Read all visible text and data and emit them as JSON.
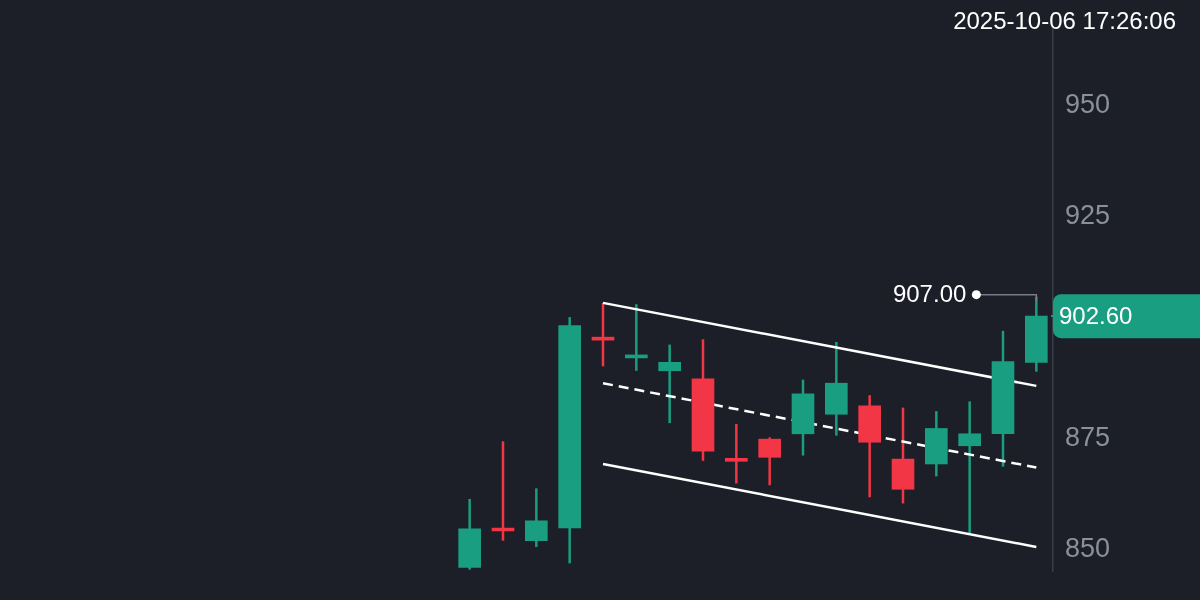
{
  "chart_data": {
    "type": "candlestick",
    "subtitle": "2025-10-06 17:26:06",
    "categories": [
      null,
      null,
      null,
      null,
      null,
      null,
      null,
      null,
      null,
      null,
      null,
      null,
      null,
      null,
      null,
      null,
      null,
      null
    ],
    "ohlc": [
      [
        846,
        861.4,
        845.5,
        854.7
      ],
      [
        854.8,
        874.4,
        852.0,
        854.2
      ],
      [
        852.0,
        863.8,
        850.6,
        856.5
      ],
      [
        854.9,
        902.4,
        846.9,
        900.5
      ],
      [
        897.5,
        905.6,
        891.3,
        897.2
      ],
      [
        893.2,
        905.3,
        890.3,
        893.6
      ],
      [
        890.3,
        896.2,
        878.5,
        892.2
      ],
      [
        888.5,
        897.4,
        870.0,
        872.2
      ],
      [
        870.2,
        878.3,
        864.9,
        869.9
      ],
      [
        874.9,
        875.3,
        864.5,
        870.8
      ],
      [
        876.1,
        888.3,
        871.2,
        885.1
      ],
      [
        880.5,
        896.8,
        875.7,
        887.5
      ],
      [
        882.4,
        884.8,
        861.8,
        874.2
      ],
      [
        870.4,
        882.0,
        860.4,
        863.6
      ],
      [
        869.3,
        881.2,
        866.5,
        877.3
      ],
      [
        873.4,
        883.4,
        853.7,
        876.1
      ],
      [
        876.1,
        899.3,
        868.7,
        892.4
      ],
      [
        892.2,
        907.0,
        890.1,
        902.6
      ]
    ],
    "colors": [
      "#1a9e82",
      "#f23645",
      "#1a9e82",
      "#1a9e82",
      "#f23645",
      "#1a9e82",
      "#1a9e82",
      "#f23645",
      "#f23645",
      "#f23645",
      "#1a9e82",
      "#1a9e82",
      "#f23645",
      "#f23645",
      "#1a9e82",
      "#1a9e82",
      "#1a9e82",
      "#1a9e82"
    ],
    "series": [
      {
        "type": "line",
        "values": [
          null,
          null,
          null,
          null,
          905.6,
          null,
          null,
          null,
          null,
          null,
          null,
          null,
          null,
          null,
          null,
          null,
          null,
          886.9
        ],
        "color": "#ffffff",
        "line_style": "solid"
      },
      {
        "type": "line",
        "values": [
          null,
          null,
          null,
          null,
          887.5,
          null,
          null,
          null,
          null,
          null,
          null,
          null,
          null,
          null,
          null,
          null,
          null,
          868.5
        ],
        "color": "#ffffff",
        "line_style": "dashed"
      },
      {
        "type": "line",
        "values": [
          null,
          null,
          null,
          null,
          869.3,
          null,
          null,
          null,
          null,
          null,
          null,
          null,
          null,
          null,
          null,
          null,
          null,
          850.6
        ],
        "color": "#ffffff",
        "line_style": "solid"
      }
    ],
    "ylim": [
      845,
      967.5
    ],
    "yticks": [
      850,
      875,
      925,
      950
    ],
    "annotations": [
      "907.00",
      "902.60"
    ],
    "tick_labels": "y",
    "legend": false
  }
}
